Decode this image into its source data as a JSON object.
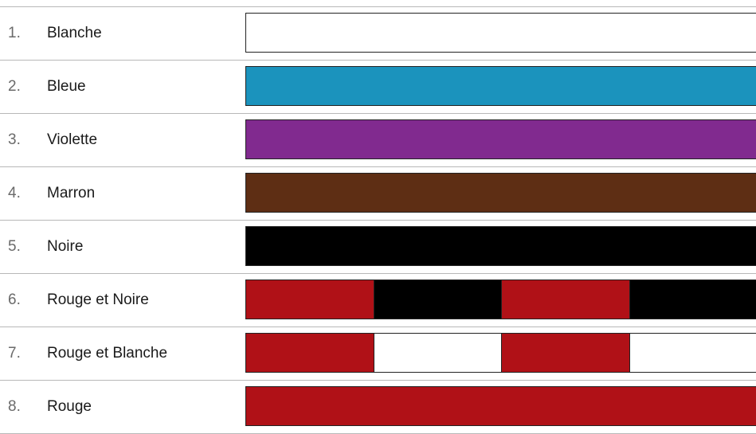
{
  "belts": [
    {
      "number": "1.",
      "label": "Blanche",
      "segments": [
        "#ffffff"
      ]
    },
    {
      "number": "2.",
      "label": "Bleue",
      "segments": [
        "#1b93bd"
      ]
    },
    {
      "number": "3.",
      "label": "Violette",
      "segments": [
        "#812a8f"
      ]
    },
    {
      "number": "4.",
      "label": "Marron",
      "segments": [
        "#5e2e14"
      ]
    },
    {
      "number": "5.",
      "label": "Noire",
      "segments": [
        "#000000"
      ]
    },
    {
      "number": "6.",
      "label": "Rouge et Noire",
      "segments": [
        "#b01117",
        "#000000",
        "#b01117",
        "#000000"
      ]
    },
    {
      "number": "7.",
      "label": "Rouge et Blanche",
      "segments": [
        "#b01117",
        "#ffffff",
        "#b01117",
        "#ffffff"
      ]
    },
    {
      "number": "8.",
      "label": "Rouge",
      "segments": [
        "#b01117"
      ]
    }
  ]
}
